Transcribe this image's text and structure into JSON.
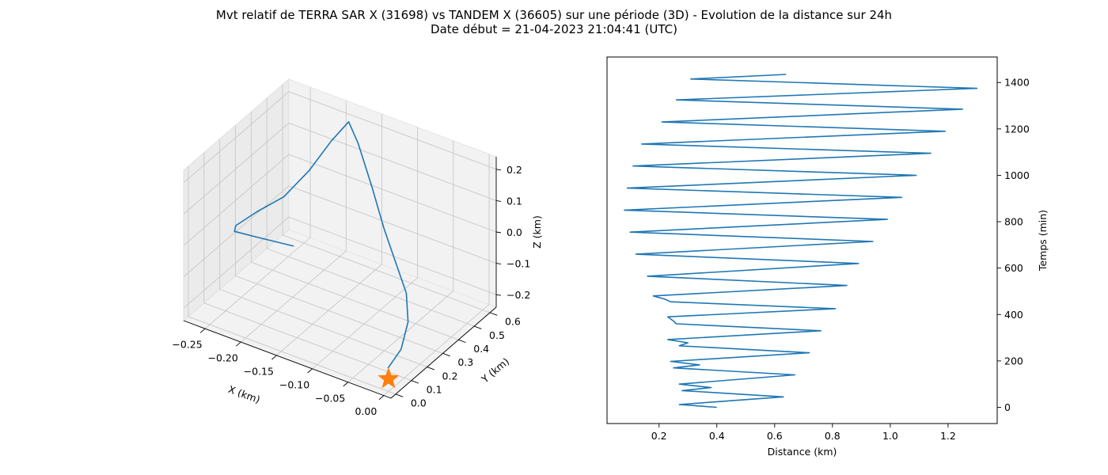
{
  "figure": {
    "title_line1": "Mvt relatif de TERRA SAR X (31698) vs TANDEM X (36605) sur une période (3D) - Evolution de la distance sur 24h",
    "title_line2": "Date début = 21-04-2023 21:04:41 (UTC)"
  },
  "chart_data": [
    {
      "type": "line3d",
      "title": "",
      "xlabel": "X (km)",
      "ylabel": "Y (km)",
      "zlabel": "Z (km)",
      "xlim": [
        -0.28,
        0.01
      ],
      "ylim": [
        -0.03,
        0.64
      ],
      "zlim": [
        -0.24,
        0.24
      ],
      "x_ticks": [
        -0.25,
        -0.2,
        -0.15,
        -0.1,
        -0.05,
        0.0
      ],
      "x_tick_labels": [
        "−0.25",
        "−0.20",
        "−0.15",
        "−0.10",
        "−0.05",
        "0.00"
      ],
      "y_ticks": [
        0.0,
        0.1,
        0.2,
        0.3,
        0.4,
        0.5,
        0.6
      ],
      "y_tick_labels": [
        "0.0",
        "0.1",
        "0.2",
        "0.3",
        "0.4",
        "0.5",
        "0.6"
      ],
      "z_ticks": [
        -0.2,
        -0.1,
        0.0,
        0.1,
        0.2
      ],
      "z_tick_labels": [
        "−0.2",
        "−0.1",
        "0.0",
        "0.1",
        "0.2"
      ],
      "grid": true,
      "series": [
        {
          "color": "#1f77b4",
          "points": [
            [
              -0.002,
              0.005,
              -0.17
            ],
            [
              0.0,
              0.08,
              -0.14
            ],
            [
              -0.01,
              0.17,
              -0.1
            ],
            [
              -0.03,
              0.25,
              -0.06
            ],
            [
              -0.06,
              0.32,
              -0.02
            ],
            [
              -0.09,
              0.38,
              0.04
            ],
            [
              -0.12,
              0.44,
              0.12
            ],
            [
              -0.15,
              0.49,
              0.21
            ],
            [
              -0.17,
              0.52,
              0.25
            ],
            [
              -0.19,
              0.5,
              0.18
            ],
            [
              -0.21,
              0.45,
              0.09
            ],
            [
              -0.23,
              0.38,
              0.02
            ],
            [
              -0.25,
              0.3,
              -0.01
            ],
            [
              -0.262,
              0.22,
              -0.03
            ],
            [
              -0.255,
              0.18,
              -0.025
            ],
            [
              -0.22,
              0.17,
              -0.01
            ],
            [
              -0.17,
              0.17,
              0.005
            ]
          ]
        }
      ],
      "marker": {
        "shape": "star",
        "color": "#ff7f0e",
        "point": [
          0.0,
          0.0,
          -0.2
        ]
      }
    },
    {
      "type": "line",
      "title": "",
      "xlabel": "Distance (km)",
      "ylabel": "Temps (min)",
      "xlim": [
        0.02,
        1.37
      ],
      "ylim": [
        -70,
        1510
      ],
      "x_ticks": [
        0.2,
        0.4,
        0.6,
        0.8,
        1.0,
        1.2
      ],
      "x_tick_labels": [
        "0.2",
        "0.4",
        "0.6",
        "0.8",
        "1.0",
        "1.2"
      ],
      "y_ticks": [
        0,
        200,
        400,
        600,
        800,
        1000,
        1200,
        1400
      ],
      "y_tick_labels": [
        "0",
        "200",
        "400",
        "600",
        "800",
        "1000",
        "1200",
        "1400"
      ],
      "y_axis_side": "right",
      "grid": false,
      "series": [
        {
          "color": "#1f77b4",
          "points": [
            [
              0.4,
              0
            ],
            [
              0.27,
              12
            ],
            [
              0.63,
              45
            ],
            [
              0.28,
              72
            ],
            [
              0.38,
              85
            ],
            [
              0.27,
              100
            ],
            [
              0.67,
              140
            ],
            [
              0.25,
              170
            ],
            [
              0.34,
              183
            ],
            [
              0.24,
              198
            ],
            [
              0.72,
              235
            ],
            [
              0.27,
              265
            ],
            [
              0.3,
              278
            ],
            [
              0.23,
              292
            ],
            [
              0.76,
              330
            ],
            [
              0.26,
              360
            ],
            [
              0.25,
              372
            ],
            [
              0.23,
              390
            ],
            [
              0.81,
              425
            ],
            [
              0.24,
              455
            ],
            [
              0.22,
              466
            ],
            [
              0.18,
              480
            ],
            [
              0.85,
              525
            ],
            [
              0.16,
              565
            ],
            [
              0.89,
              620
            ],
            [
              0.12,
              660
            ],
            [
              0.94,
              715
            ],
            [
              0.1,
              755
            ],
            [
              0.99,
              810
            ],
            [
              0.08,
              850
            ],
            [
              1.04,
              905
            ],
            [
              0.09,
              945
            ],
            [
              1.09,
              1000
            ],
            [
              0.11,
              1040
            ],
            [
              1.14,
              1095
            ],
            [
              0.14,
              1135
            ],
            [
              1.19,
              1190
            ],
            [
              0.21,
              1230
            ],
            [
              1.25,
              1285
            ],
            [
              0.26,
              1325
            ],
            [
              1.3,
              1375
            ],
            [
              0.31,
              1415
            ],
            [
              0.64,
              1435
            ]
          ]
        }
      ]
    }
  ]
}
